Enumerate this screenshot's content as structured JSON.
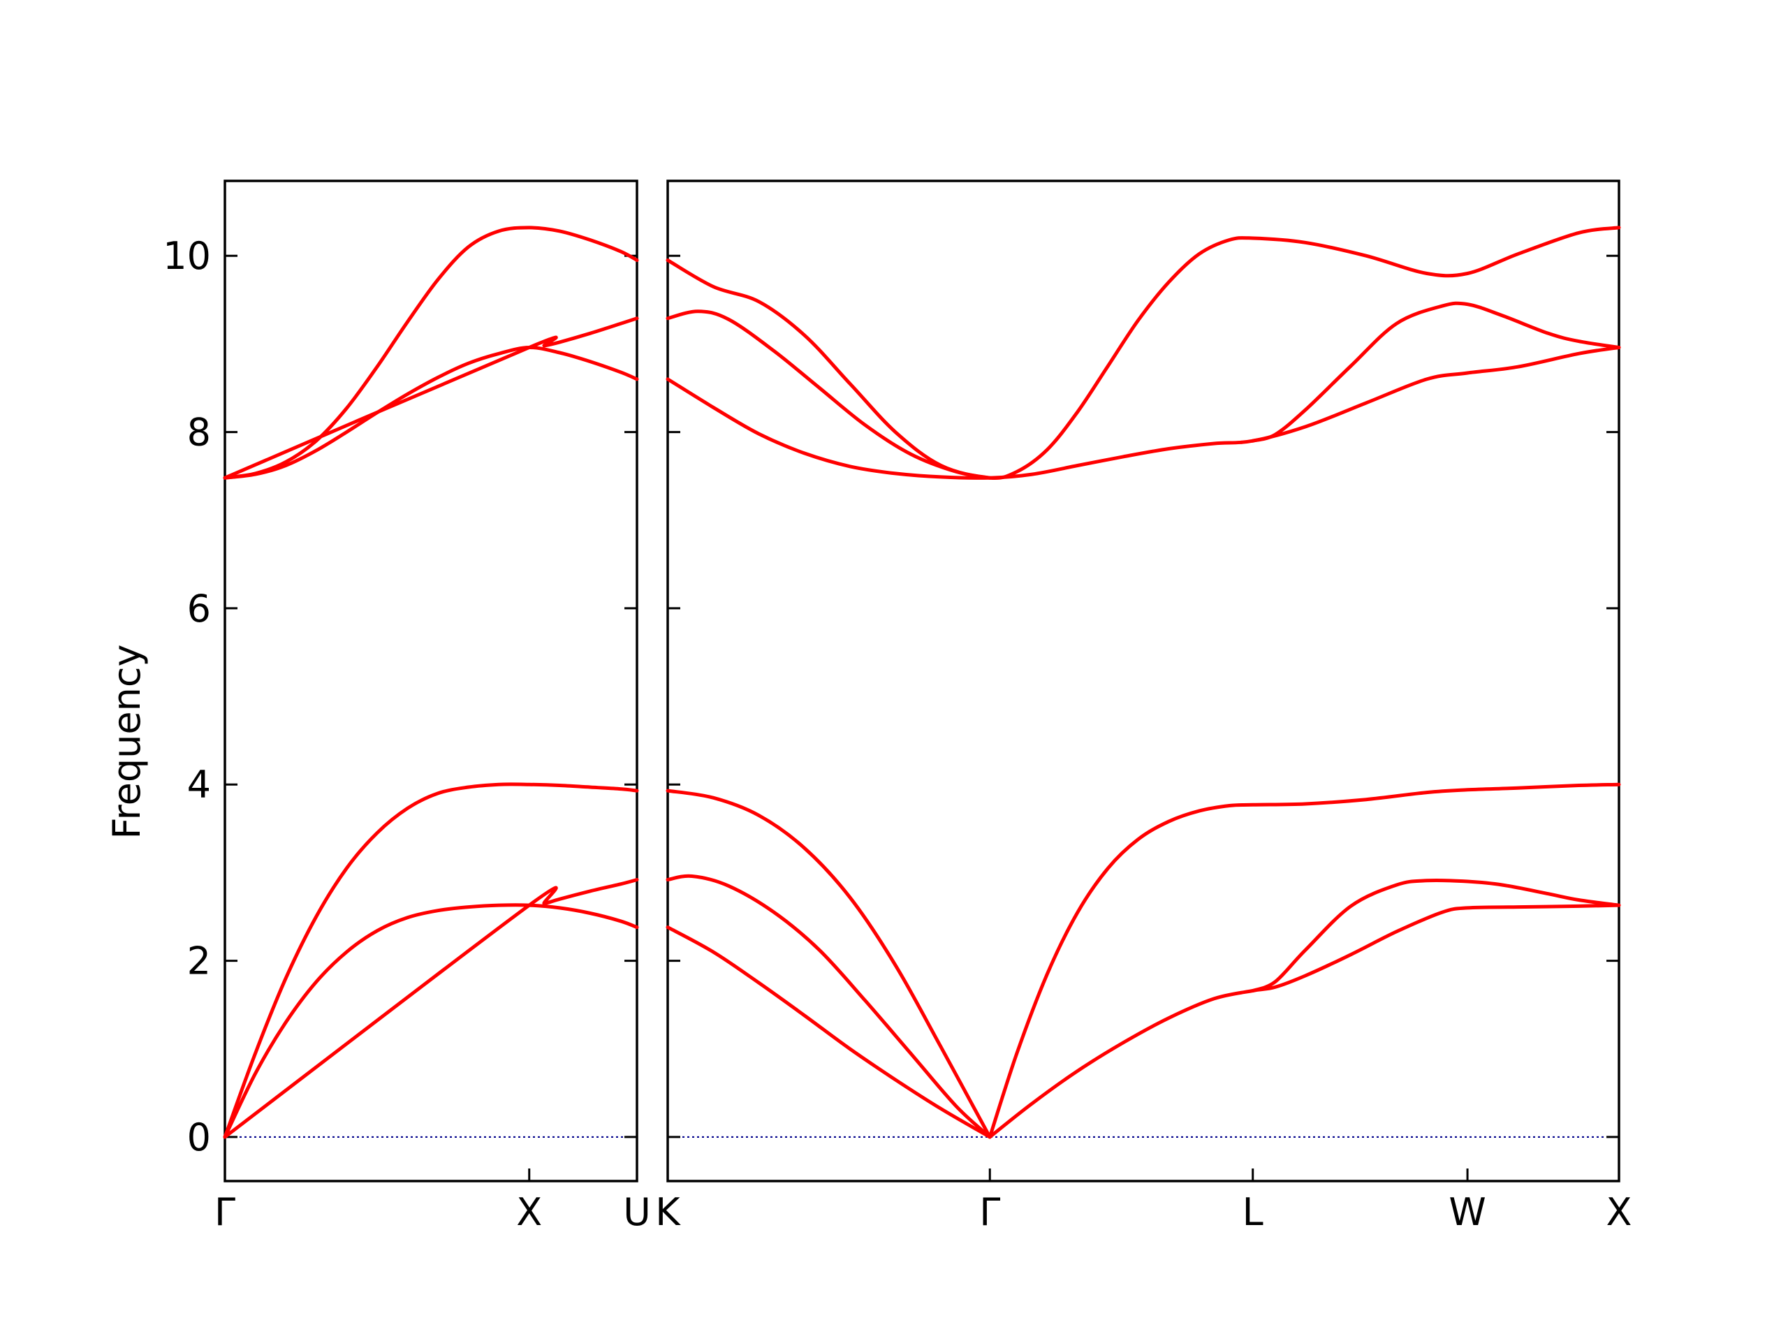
{
  "chart_data": {
    "type": "line",
    "ylabel": "Frequency",
    "ylim": [
      -0.5,
      10.85
    ],
    "yticks": [
      0,
      2,
      4,
      6,
      8,
      10
    ],
    "grid": false,
    "colors": {
      "bands": "#ff0000",
      "zero_line": "#00008b",
      "axes": "#000000"
    },
    "panels": [
      {
        "name": "Γ-X-U",
        "path_length": 1.354,
        "labels": [
          {
            "label": "Γ",
            "x": 0
          },
          {
            "label": "X",
            "x": 1.0
          },
          {
            "label": "U",
            "x": 1.354
          }
        ],
        "bands": [
          [
            [
              0,
              0
            ],
            [
              0.1,
              0.72
            ],
            [
              0.2,
              1.3
            ],
            [
              0.3,
              1.76
            ],
            [
              0.4,
              2.1
            ],
            [
              0.5,
              2.34
            ],
            [
              0.6,
              2.49
            ],
            [
              0.7,
              2.57
            ],
            [
              0.8,
              2.61
            ],
            [
              0.9,
              2.63
            ],
            [
              1.0,
              2.63
            ],
            [
              1.1,
              2.6
            ],
            [
              1.2,
              2.54
            ],
            [
              1.3,
              2.45
            ],
            [
              1.354,
              2.38
            ]
          ],
          [
            [
              0,
              0
            ],
            [
              1.0,
              2.63
            ],
            [
              1.05,
              2.65
            ],
            [
              1.1,
              2.7
            ],
            [
              1.2,
              2.79
            ],
            [
              1.3,
              2.87
            ],
            [
              1.354,
              2.92
            ]
          ],
          [
            [
              0,
              0
            ],
            [
              0.1,
              0.95
            ],
            [
              0.2,
              1.8
            ],
            [
              0.3,
              2.5
            ],
            [
              0.4,
              3.05
            ],
            [
              0.5,
              3.45
            ],
            [
              0.6,
              3.73
            ],
            [
              0.7,
              3.9
            ],
            [
              0.8,
              3.97
            ],
            [
              0.9,
              4.0
            ],
            [
              1.0,
              4.0
            ],
            [
              1.1,
              3.99
            ],
            [
              1.2,
              3.97
            ],
            [
              1.3,
              3.95
            ],
            [
              1.354,
              3.93
            ]
          ],
          [
            [
              0,
              7.48
            ],
            [
              0.1,
              7.52
            ],
            [
              0.2,
              7.62
            ],
            [
              0.3,
              7.79
            ],
            [
              0.4,
              8.0
            ],
            [
              0.5,
              8.22
            ],
            [
              0.6,
              8.43
            ],
            [
              0.7,
              8.62
            ],
            [
              0.8,
              8.78
            ],
            [
              0.9,
              8.89
            ],
            [
              1.0,
              8.96
            ],
            [
              1.1,
              8.9
            ],
            [
              1.2,
              8.8
            ],
            [
              1.3,
              8.68
            ],
            [
              1.354,
              8.6
            ]
          ],
          [
            [
              0,
              7.48
            ],
            [
              1.0,
              8.96
            ],
            [
              1.05,
              8.98
            ],
            [
              1.1,
              9.02
            ],
            [
              1.2,
              9.12
            ],
            [
              1.3,
              9.23
            ],
            [
              1.354,
              9.29
            ]
          ],
          [
            [
              0,
              7.48
            ],
            [
              0.1,
              7.53
            ],
            [
              0.2,
              7.66
            ],
            [
              0.3,
              7.9
            ],
            [
              0.4,
              8.27
            ],
            [
              0.5,
              8.74
            ],
            [
              0.6,
              9.25
            ],
            [
              0.7,
              9.73
            ],
            [
              0.8,
              10.1
            ],
            [
              0.9,
              10.28
            ],
            [
              1.0,
              10.32
            ],
            [
              1.1,
              10.28
            ],
            [
              1.2,
              10.18
            ],
            [
              1.3,
              10.05
            ],
            [
              1.354,
              9.95
            ]
          ]
        ]
      },
      {
        "name": "K-Γ-L-W-X",
        "path_length": 3.133,
        "labels": [
          {
            "label": "K",
            "x": 0
          },
          {
            "label": "Γ",
            "x": 1.061
          },
          {
            "label": "L",
            "x": 1.927
          },
          {
            "label": "W",
            "x": 2.634
          },
          {
            "label": "X",
            "x": 3.133
          }
        ],
        "bands": [
          [
            [
              0,
              2.38
            ],
            [
              0.15,
              2.1
            ],
            [
              0.3,
              1.75
            ],
            [
              0.45,
              1.38
            ],
            [
              0.6,
              1.0
            ],
            [
              0.75,
              0.65
            ],
            [
              0.9,
              0.32
            ],
            [
              1.061,
              0
            ]
          ],
          [
            [
              0,
              2.92
            ],
            [
              0.08,
              2.96
            ],
            [
              0.2,
              2.85
            ],
            [
              0.35,
              2.55
            ],
            [
              0.5,
              2.12
            ],
            [
              0.65,
              1.55
            ],
            [
              0.8,
              0.95
            ],
            [
              0.95,
              0.35
            ],
            [
              1.061,
              0
            ]
          ],
          [
            [
              0,
              3.93
            ],
            [
              0.15,
              3.85
            ],
            [
              0.3,
              3.65
            ],
            [
              0.45,
              3.28
            ],
            [
              0.6,
              2.72
            ],
            [
              0.75,
              1.95
            ],
            [
              0.9,
              1.02
            ],
            [
              1.061,
              0
            ]
          ],
          [
            [
              1.061,
              0
            ],
            [
              1.2,
              0.38
            ],
            [
              1.35,
              0.75
            ],
            [
              1.5,
              1.07
            ],
            [
              1.65,
              1.35
            ],
            [
              1.8,
              1.57
            ],
            [
              1.927,
              1.66
            ],
            [
              2.0,
              1.7
            ],
            [
              2.1,
              1.83
            ],
            [
              2.25,
              2.07
            ],
            [
              2.4,
              2.33
            ],
            [
              2.55,
              2.55
            ],
            [
              2.634,
              2.6
            ],
            [
              2.8,
              2.61
            ],
            [
              3.0,
              2.62
            ],
            [
              3.133,
              2.63
            ]
          ],
          [
            [
              1.927,
              1.66
            ],
            [
              2.0,
              1.76
            ],
            [
              2.1,
              2.12
            ],
            [
              2.25,
              2.62
            ],
            [
              2.4,
              2.86
            ],
            [
              2.5,
              2.91
            ],
            [
              2.634,
              2.9
            ],
            [
              2.75,
              2.86
            ],
            [
              2.9,
              2.76
            ],
            [
              3.0,
              2.69
            ],
            [
              3.133,
              2.63
            ]
          ],
          [
            [
              1.061,
              0
            ],
            [
              1.15,
              0.95
            ],
            [
              1.25,
              1.85
            ],
            [
              1.35,
              2.55
            ],
            [
              1.45,
              3.05
            ],
            [
              1.55,
              3.38
            ],
            [
              1.65,
              3.58
            ],
            [
              1.75,
              3.7
            ],
            [
              1.85,
              3.76
            ],
            [
              1.927,
              3.77
            ],
            [
              2.1,
              3.78
            ],
            [
              2.3,
              3.83
            ],
            [
              2.5,
              3.91
            ],
            [
              2.634,
              3.94
            ],
            [
              2.8,
              3.96
            ],
            [
              3.0,
              3.99
            ],
            [
              3.133,
              4.0
            ]
          ],
          [
            [
              0,
              8.6
            ],
            [
              0.15,
              8.28
            ],
            [
              0.3,
              7.98
            ],
            [
              0.45,
              7.76
            ],
            [
              0.6,
              7.61
            ],
            [
              0.75,
              7.53
            ],
            [
              0.9,
              7.49
            ],
            [
              1.061,
              7.48
            ],
            [
              1.2,
              7.52
            ],
            [
              1.35,
              7.62
            ],
            [
              1.5,
              7.72
            ],
            [
              1.65,
              7.81
            ],
            [
              1.8,
              7.87
            ],
            [
              1.927,
              7.9
            ],
            [
              2.1,
              8.06
            ],
            [
              2.3,
              8.33
            ],
            [
              2.5,
              8.6
            ],
            [
              2.634,
              8.67
            ],
            [
              2.8,
              8.74
            ],
            [
              3.0,
              8.89
            ],
            [
              3.133,
              8.96
            ]
          ],
          [
            [
              0,
              9.29
            ],
            [
              0.1,
              9.37
            ],
            [
              0.2,
              9.28
            ],
            [
              0.35,
              8.92
            ],
            [
              0.5,
              8.5
            ],
            [
              0.65,
              8.08
            ],
            [
              0.8,
              7.75
            ],
            [
              0.95,
              7.55
            ],
            [
              1.061,
              7.48
            ]
          ],
          [
            [
              0,
              9.95
            ],
            [
              0.15,
              9.65
            ],
            [
              0.3,
              9.48
            ],
            [
              0.45,
              9.1
            ],
            [
              0.6,
              8.55
            ],
            [
              0.75,
              8.0
            ],
            [
              0.9,
              7.62
            ],
            [
              1.061,
              7.48
            ],
            [
              1.15,
              7.55
            ],
            [
              1.25,
              7.8
            ],
            [
              1.35,
              8.23
            ],
            [
              1.45,
              8.75
            ],
            [
              1.55,
              9.27
            ],
            [
              1.65,
              9.7
            ],
            [
              1.75,
              10.02
            ],
            [
              1.85,
              10.18
            ],
            [
              1.927,
              10.2
            ],
            [
              2.1,
              10.15
            ],
            [
              2.3,
              10.0
            ],
            [
              2.5,
              9.8
            ],
            [
              2.634,
              9.8
            ],
            [
              2.8,
              10.02
            ],
            [
              3.0,
              10.26
            ],
            [
              3.133,
              10.32
            ]
          ],
          [
            [
              1.927,
              7.9
            ],
            [
              2.0,
              7.97
            ],
            [
              2.1,
              8.25
            ],
            [
              2.25,
              8.75
            ],
            [
              2.4,
              9.23
            ],
            [
              2.55,
              9.43
            ],
            [
              2.634,
              9.45
            ],
            [
              2.75,
              9.32
            ],
            [
              2.9,
              9.12
            ],
            [
              3.0,
              9.03
            ],
            [
              3.133,
              8.96
            ]
          ]
        ]
      }
    ]
  }
}
